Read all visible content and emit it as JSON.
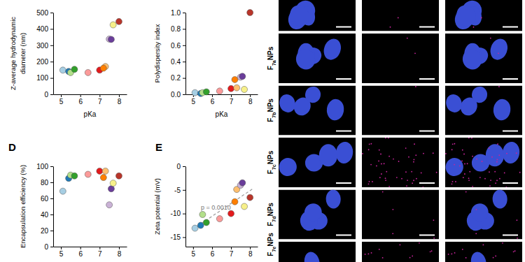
{
  "chart_data": [
    {
      "type": "scatter",
      "x_label": "pKa",
      "y_label": [
        "Z-average hydrodynamic",
        "diameter (nm)"
      ],
      "x": [
        5.1,
        5.4,
        5.5,
        5.7,
        6.4,
        7.0,
        7.3,
        7.2,
        7.5,
        7.6,
        7.7,
        8.0
      ],
      "values": [
        148,
        140,
        133,
        153,
        133,
        148,
        170,
        160,
        338,
        336,
        425,
        445
      ],
      "colors": [
        "#a6cee3",
        "#1f78b4",
        "#b2df8a",
        "#33a02c",
        "#fb9a99",
        "#e31a1c",
        "#fdbf6f",
        "#ff7f00",
        "#cab2d6",
        "#6a3d9a",
        "#f7f08a",
        "#b8352a"
      ],
      "xlim": [
        4.6,
        8.4
      ],
      "xticks": [
        5,
        6,
        7,
        8
      ],
      "ylim": [
        0,
        500
      ],
      "yticks": [
        0,
        100,
        200,
        300,
        400,
        500
      ]
    },
    {
      "type": "scatter",
      "x_label": "pKa",
      "y_label": [
        "Polydispersity index"
      ],
      "x": [
        5.1,
        5.4,
        5.5,
        5.7,
        6.4,
        7.0,
        7.3,
        7.2,
        7.5,
        7.6,
        7.7,
        8.0
      ],
      "values": [
        0.02,
        0.01,
        0.02,
        0.03,
        0.04,
        0.07,
        0.08,
        0.18,
        0.21,
        0.22,
        0.06,
        1.0
      ],
      "colors": [
        "#a6cee3",
        "#1f78b4",
        "#b2df8a",
        "#33a02c",
        "#fb9a99",
        "#e31a1c",
        "#fdbf6f",
        "#ff7f00",
        "#cab2d6",
        "#6a3d9a",
        "#f7f08a",
        "#b8352a"
      ],
      "xlim": [
        4.6,
        8.4
      ],
      "xticks": [
        5,
        6,
        7,
        8
      ],
      "ylim": [
        0,
        1.0
      ],
      "yticks": [
        {
          "value": 0,
          "label": "0.0"
        },
        {
          "value": 0.2,
          "label": "0.2"
        },
        {
          "value": 0.4,
          "label": "0.4"
        },
        {
          "value": 0.6,
          "label": "0.6"
        },
        {
          "value": 0.8,
          "label": "0.8"
        },
        {
          "value": 1.0,
          "label": "1.0"
        }
      ]
    },
    {
      "type": "scatter",
      "panel_label": "D",
      "y_label": [
        "Encapsulation efficiency (%)"
      ],
      "x": [
        5.1,
        5.4,
        5.5,
        5.7,
        6.4,
        7.0,
        7.3,
        7.2,
        7.5,
        7.6,
        7.7,
        8.0
      ],
      "values": [
        69,
        85,
        89,
        88,
        90,
        94,
        94,
        86,
        52,
        72,
        79,
        88
      ],
      "colors": [
        "#a6cee3",
        "#1f78b4",
        "#b2df8a",
        "#33a02c",
        "#fb9a99",
        "#e31a1c",
        "#fdbf6f",
        "#ff7f00",
        "#cab2d6",
        "#6a3d9a",
        "#f7f08a",
        "#b8352a"
      ],
      "xlim": [
        4.6,
        8.4
      ],
      "xticks": [
        5,
        6,
        7,
        8
      ],
      "ylim": [
        0,
        100
      ],
      "yticks": [
        0,
        20,
        40,
        60,
        80,
        100
      ]
    },
    {
      "type": "scatter",
      "panel_label": "E",
      "y_label": [
        "Zeta potential (mV)"
      ],
      "x": [
        5.1,
        5.4,
        5.5,
        5.7,
        6.4,
        7.0,
        7.3,
        7.2,
        7.5,
        7.6,
        7.7,
        8.0
      ],
      "values": [
        -13.1,
        -12.5,
        -10.2,
        -11.9,
        -11.1,
        -10.0,
        -4.9,
        -7.5,
        -4.0,
        -3.5,
        -8.5,
        -6.6
      ],
      "colors": [
        "#a6cee3",
        "#1f78b4",
        "#b2df8a",
        "#33a02c",
        "#fb9a99",
        "#e31a1c",
        "#fdbf6f",
        "#ff7f00",
        "#cab2d6",
        "#6a3d9a",
        "#f7f08a",
        "#b8352a"
      ],
      "xlim": [
        4.6,
        8.4
      ],
      "xticks": [
        5,
        6,
        7,
        8
      ],
      "ylim": [
        -17,
        0
      ],
      "yticks": [
        -15,
        -10,
        -5,
        0
      ],
      "fit": {
        "x": [
          5.0,
          8.2
        ],
        "values": [
          -13.3,
          -4.6
        ],
        "line_style": "dashed",
        "color": "#9a9a9a"
      },
      "annotation": "p = 0.0010"
    }
  ],
  "micrographs": {
    "rows": [
      "F7aNPs",
      "F7bNPs",
      "F7cNPs",
      "F7dNPs",
      "F7eNPs"
    ]
  }
}
